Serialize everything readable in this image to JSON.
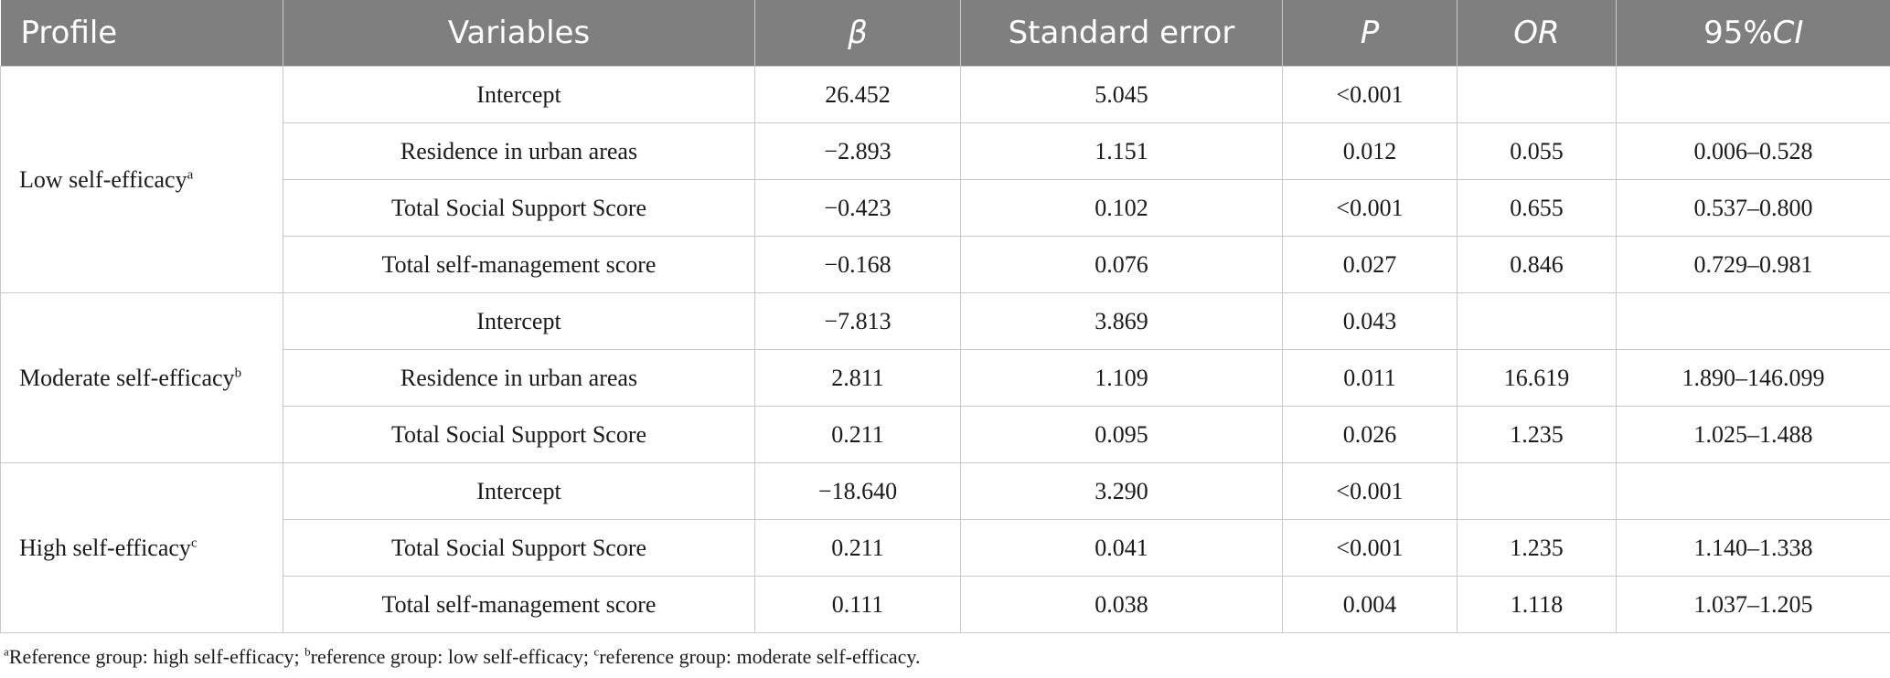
{
  "header": {
    "profile": "Profile",
    "variables": "Variables",
    "beta": "β",
    "se": "Standard error",
    "p": "P",
    "or": "OR",
    "ci_num": "95%",
    "ci_it": "CI"
  },
  "groups": [
    {
      "name": "Low self-efficacy",
      "sup": "a",
      "rows": [
        {
          "variable": "Intercept",
          "beta": "26.452",
          "se": "5.045",
          "p": "<0.001",
          "or": "",
          "ci": ""
        },
        {
          "variable": "Residence in urban areas",
          "beta": "−2.893",
          "se": "1.151",
          "p": "0.012",
          "or": "0.055",
          "ci": "0.006–0.528"
        },
        {
          "variable": "Total Social Support Score",
          "beta": "−0.423",
          "se": "0.102",
          "p": "<0.001",
          "or": "0.655",
          "ci": "0.537–0.800"
        },
        {
          "variable": "Total self-management score",
          "beta": "−0.168",
          "se": "0.076",
          "p": "0.027",
          "or": "0.846",
          "ci": "0.729–0.981"
        }
      ]
    },
    {
      "name": "Moderate self-efficacy",
      "sup": "b",
      "rows": [
        {
          "variable": "Intercept",
          "beta": "−7.813",
          "se": "3.869",
          "p": "0.043",
          "or": "",
          "ci": ""
        },
        {
          "variable": "Residence in urban areas",
          "beta": "2.811",
          "se": "1.109",
          "p": "0.011",
          "or": "16.619",
          "ci": "1.890–146.099"
        },
        {
          "variable": "Total Social Support Score",
          "beta": "0.211",
          "se": "0.095",
          "p": "0.026",
          "or": "1.235",
          "ci": "1.025–1.488"
        }
      ]
    },
    {
      "name": "High self-efficacy",
      "sup": "c",
      "rows": [
        {
          "variable": "Intercept",
          "beta": "−18.640",
          "se": "3.290",
          "p": "<0.001",
          "or": "",
          "ci": ""
        },
        {
          "variable": "Total Social Support Score",
          "beta": "0.211",
          "se": "0.041",
          "p": "<0.001",
          "or": "1.235",
          "ci": "1.140–1.338"
        },
        {
          "variable": "Total self-management score",
          "beta": "0.111",
          "se": "0.038",
          "p": "0.004",
          "or": "1.118",
          "ci": "1.037–1.205"
        }
      ]
    }
  ],
  "footnote": [
    {
      "sup": "a",
      "text": "Reference group: high self-efficacy; "
    },
    {
      "sup": "b",
      "text": "reference group: low self-efficacy; "
    },
    {
      "sup": "c",
      "text": "reference group: moderate self-efficacy."
    }
  ]
}
